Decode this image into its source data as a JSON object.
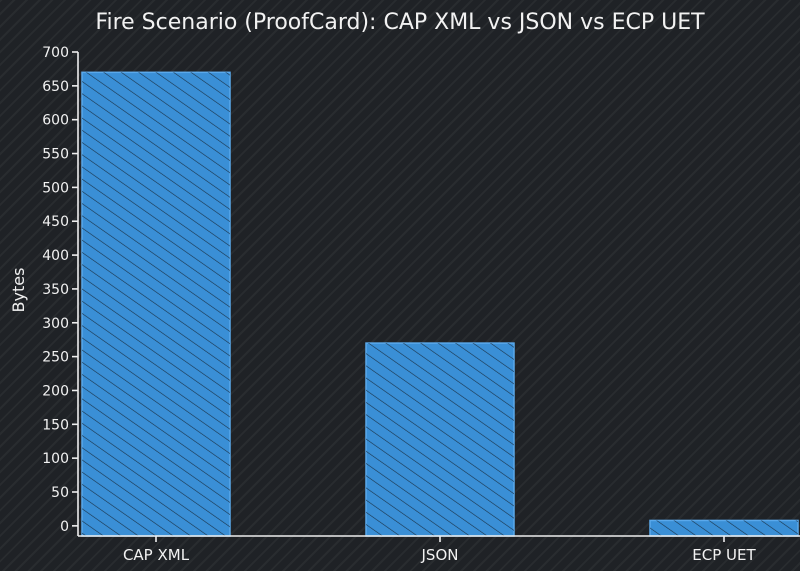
{
  "chart_data": {
    "type": "bar",
    "title": "Fire Scenario (ProofCard): CAP XML vs JSON vs ECP UET",
    "xlabel": "",
    "ylabel": "Bytes",
    "categories": [
      "CAP XML",
      "JSON",
      "ECP UET"
    ],
    "values": [
      670,
      270,
      8
    ],
    "ylim": [
      -15,
      700
    ],
    "yticks": [
      0,
      50,
      100,
      150,
      200,
      250,
      300,
      350,
      400,
      450,
      500,
      550,
      600,
      650,
      700
    ],
    "grid": false,
    "bar_color": "#3a8fd6"
  }
}
